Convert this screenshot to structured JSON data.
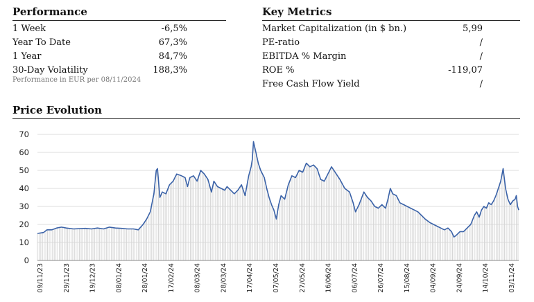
{
  "performance": {
    "title": "Performance",
    "rows": [
      {
        "label": "1 Week",
        "value": "-6,5%"
      },
      {
        "label": "Year To Date",
        "value": "67,3%"
      },
      {
        "label": "1 Year",
        "value": "84,7%"
      },
      {
        "label": "30-Day Volatility",
        "value": "188,3%"
      }
    ],
    "note": "Performance in EUR per 08/11/2024"
  },
  "key_metrics": {
    "title": "Key Metrics",
    "rows": [
      {
        "label": "Market Capitalization (in $ bn.)",
        "value": "5,99"
      },
      {
        "label": "PE-ratio",
        "value": "/"
      },
      {
        "label": "EBITDA % Margin",
        "value": "/"
      },
      {
        "label": "ROE %",
        "value": "-119,07"
      },
      {
        "label": "Free Cash Flow Yield",
        "value": "/"
      }
    ]
  },
  "price_evolution": {
    "title": "Price Evolution"
  },
  "chart_data": {
    "type": "area",
    "title": "Price Evolution",
    "ylim": [
      0,
      70
    ],
    "yticks": [
      "0",
      "10",
      "20",
      "30",
      "40",
      "50",
      "60",
      "70"
    ],
    "xticks": [
      "09/11/23",
      "29/11/23",
      "19/12/23",
      "08/01/24",
      "28/01/24",
      "17/02/24",
      "08/03/24",
      "28/03/24",
      "17/04/24",
      "07/05/24",
      "27/05/24",
      "16/06/24",
      "06/07/24",
      "26/07/24",
      "15/08/24",
      "04/09/24",
      "24/09/24",
      "14/10/24",
      "03/11/24"
    ],
    "x_days": [
      0,
      366
    ],
    "grid": true,
    "line_color": "#3a62a8",
    "fill_color": "#d6d6d6",
    "points": [
      [
        0,
        15
      ],
      [
        5,
        15.5
      ],
      [
        8,
        17
      ],
      [
        12,
        17
      ],
      [
        16,
        18
      ],
      [
        20,
        18.5
      ],
      [
        24,
        18
      ],
      [
        30,
        17.5
      ],
      [
        40,
        17.8
      ],
      [
        45,
        17.5
      ],
      [
        50,
        18
      ],
      [
        55,
        17.5
      ],
      [
        60,
        18.5
      ],
      [
        65,
        18
      ],
      [
        70,
        17.8
      ],
      [
        75,
        17.5
      ],
      [
        80,
        17.5
      ],
      [
        84,
        17
      ],
      [
        88,
        20
      ],
      [
        91,
        23
      ],
      [
        94,
        27
      ],
      [
        97,
        37
      ],
      [
        99,
        50
      ],
      [
        100,
        51
      ],
      [
        102,
        35
      ],
      [
        104,
        38
      ],
      [
        107,
        37
      ],
      [
        110,
        42
      ],
      [
        113,
        44
      ],
      [
        116,
        48
      ],
      [
        120,
        47
      ],
      [
        123,
        46
      ],
      [
        125,
        41
      ],
      [
        127,
        46
      ],
      [
        130,
        47
      ],
      [
        133,
        44
      ],
      [
        136,
        50
      ],
      [
        139,
        48
      ],
      [
        142,
        45
      ],
      [
        145,
        38
      ],
      [
        147,
        44
      ],
      [
        150,
        41
      ],
      [
        153,
        40
      ],
      [
        156,
        39
      ],
      [
        158,
        41
      ],
      [
        161,
        39
      ],
      [
        164,
        37
      ],
      [
        167,
        39
      ],
      [
        170,
        42
      ],
      [
        173,
        36
      ],
      [
        176,
        47
      ],
      [
        178,
        52
      ],
      [
        179,
        56
      ],
      [
        180,
        66
      ],
      [
        182,
        60
      ],
      [
        184,
        54
      ],
      [
        186,
        50
      ],
      [
        189,
        46
      ],
      [
        191,
        40
      ],
      [
        193,
        35
      ],
      [
        195,
        31
      ],
      [
        197,
        28
      ],
      [
        199,
        23
      ],
      [
        201,
        31
      ],
      [
        203,
        36
      ],
      [
        206,
        34
      ],
      [
        209,
        42
      ],
      [
        212,
        47
      ],
      [
        215,
        46
      ],
      [
        218,
        50
      ],
      [
        221,
        49
      ],
      [
        224,
        54
      ],
      [
        227,
        52
      ],
      [
        230,
        53
      ],
      [
        233,
        51
      ],
      [
        236,
        45
      ],
      [
        239,
        44
      ],
      [
        242,
        48
      ],
      [
        245,
        52
      ],
      [
        248,
        49
      ],
      [
        252,
        45
      ],
      [
        256,
        40
      ],
      [
        260,
        38
      ],
      [
        263,
        32
      ],
      [
        265,
        27
      ],
      [
        268,
        31
      ],
      [
        272,
        38
      ],
      [
        275,
        35
      ],
      [
        278,
        33
      ],
      [
        281,
        30
      ],
      [
        284,
        29
      ],
      [
        287,
        31
      ],
      [
        290,
        29
      ],
      [
        292,
        34
      ],
      [
        294,
        40
      ],
      [
        296,
        37
      ],
      [
        299,
        36
      ],
      [
        302,
        32
      ],
      [
        305,
        31
      ],
      [
        308,
        30
      ],
      [
        311,
        29
      ],
      [
        314,
        28
      ],
      [
        317,
        27
      ],
      [
        320,
        25
      ],
      [
        323,
        23
      ],
      [
        327,
        21
      ],
      [
        330,
        20
      ],
      [
        333,
        19
      ],
      [
        336,
        18
      ],
      [
        339,
        17
      ],
      [
        342,
        18
      ],
      [
        345,
        16
      ],
      [
        347,
        13
      ],
      [
        349,
        14
      ],
      [
        352,
        16
      ],
      [
        355,
        16
      ],
      [
        358,
        18
      ],
      [
        361,
        20
      ],
      [
        364,
        25
      ],
      [
        366,
        27
      ],
      [
        368,
        24
      ],
      [
        370,
        28
      ],
      [
        372,
        30
      ],
      [
        374,
        29
      ],
      [
        376,
        32
      ],
      [
        378,
        31
      ],
      [
        380,
        33
      ],
      [
        382,
        36
      ],
      [
        384,
        40
      ],
      [
        386,
        44
      ],
      [
        388,
        51
      ],
      [
        390,
        40
      ],
      [
        392,
        34
      ],
      [
        394,
        31
      ],
      [
        396,
        33
      ],
      [
        398,
        34
      ],
      [
        399,
        36
      ],
      [
        400,
        30
      ],
      [
        401,
        28
      ]
    ]
  }
}
